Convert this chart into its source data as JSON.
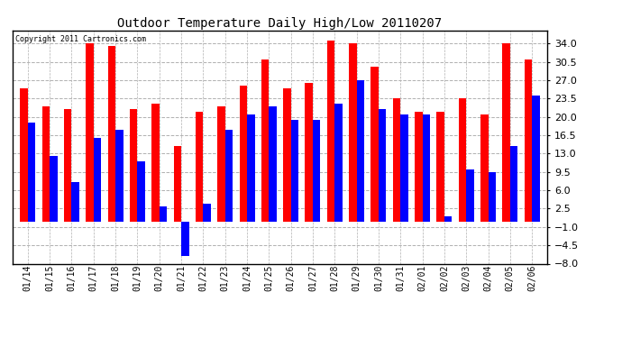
{
  "title": "Outdoor Temperature Daily High/Low 20110207",
  "copyright": "Copyright 2011 Cartronics.com",
  "dates": [
    "01/14",
    "01/15",
    "01/16",
    "01/17",
    "01/18",
    "01/19",
    "01/20",
    "01/21",
    "01/22",
    "01/23",
    "01/24",
    "01/25",
    "01/26",
    "01/27",
    "01/28",
    "01/29",
    "01/30",
    "01/31",
    "02/01",
    "02/02",
    "02/03",
    "02/04",
    "02/05",
    "02/06"
  ],
  "highs": [
    25.5,
    22.0,
    21.5,
    34.0,
    33.5,
    21.5,
    22.5,
    14.5,
    21.0,
    22.0,
    26.0,
    31.0,
    25.5,
    26.5,
    34.5,
    34.0,
    29.5,
    23.5,
    21.0,
    21.0,
    23.5,
    20.5,
    34.0,
    31.0
  ],
  "lows": [
    19.0,
    12.5,
    7.5,
    16.0,
    17.5,
    11.5,
    3.0,
    -6.5,
    3.5,
    17.5,
    20.5,
    22.0,
    19.5,
    19.5,
    22.5,
    27.0,
    21.5,
    20.5,
    20.5,
    1.0,
    10.0,
    9.5,
    14.5,
    24.0
  ],
  "high_color": "#ff0000",
  "low_color": "#0000ff",
  "bg_color": "#ffffff",
  "grid_color": "#b0b0b0",
  "ylim_min": -8.0,
  "ylim_max": 36.5,
  "yticks": [
    34.0,
    30.5,
    27.0,
    23.5,
    20.0,
    16.5,
    13.0,
    9.5,
    6.0,
    2.5,
    -1.0,
    -4.5,
    -8.0
  ],
  "bar_width": 0.35,
  "title_fontsize": 10,
  "tick_fontsize": 7,
  "ytick_fontsize": 8
}
